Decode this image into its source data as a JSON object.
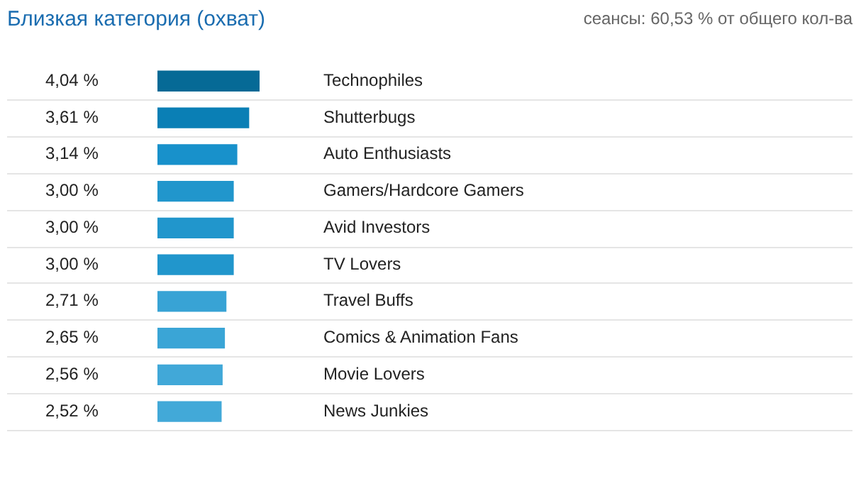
{
  "chart_data": {
    "type": "bar",
    "orientation": "horizontal",
    "title": "Близкая категория (охват)",
    "subtitle": "сеансы: 60,53 % от общего кол-ва",
    "categories": [
      "Technophiles",
      "Shutterbugs",
      "Auto Enthusiasts",
      "Gamers/Hardcore Gamers",
      "Avid Investors",
      "TV Lovers",
      "Travel Buffs",
      "Comics & Animation Fans",
      "Movie Lovers",
      "News Junkies"
    ],
    "values": [
      4.04,
      3.61,
      3.14,
      3.0,
      3.0,
      3.0,
      2.71,
      2.65,
      2.56,
      2.52
    ],
    "value_labels": [
      "4,04 %",
      "3,61 %",
      "3,14 %",
      "3,00 %",
      "3,00 %",
      "3,00 %",
      "2,71 %",
      "2,65 %",
      "2,56 %",
      "2,52 %"
    ],
    "colors": [
      "#066a96",
      "#0a7fb5",
      "#1891cb",
      "#2196cc",
      "#2196cc",
      "#2196cc",
      "#38a3d5",
      "#3aa5d6",
      "#41a8d8",
      "#42a9d8"
    ],
    "grid": "y"
  }
}
